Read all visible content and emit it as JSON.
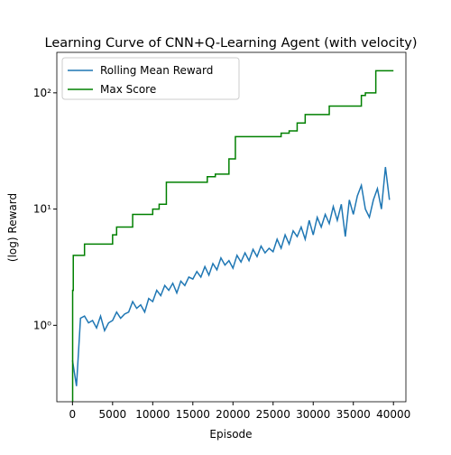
{
  "chart_data": {
    "type": "line",
    "title": "Learning Curve of CNN+Q-Learning Agent (with velocity)",
    "xlabel": "Episode",
    "ylabel": "(log) Reward",
    "log_y": true,
    "grid": false,
    "legend": "upper left",
    "xlim": [
      -1950,
      41550
    ],
    "ylim": [
      0.22,
      223
    ],
    "xticks": [
      0,
      5000,
      10000,
      15000,
      20000,
      25000,
      30000,
      35000,
      40000
    ],
    "yticks": [
      {
        "value": 1,
        "label": "10⁰"
      },
      {
        "value": 10,
        "label": "10¹"
      },
      {
        "value": 100,
        "label": "10²"
      }
    ],
    "series": [
      {
        "name": "Rolling Mean Reward",
        "color": "#1f77b4",
        "drawstyle": "default",
        "x": [
          0,
          500,
          1000,
          1500,
          2000,
          2500,
          3000,
          3500,
          4000,
          4500,
          5000,
          5500,
          6000,
          6500,
          7000,
          7500,
          8000,
          8500,
          9000,
          9500,
          10000,
          10500,
          11000,
          11500,
          12000,
          12500,
          13000,
          13500,
          14000,
          14500,
          15000,
          15500,
          16000,
          16500,
          17000,
          17500,
          18000,
          18500,
          19000,
          19500,
          20000,
          20500,
          21000,
          21500,
          22000,
          22500,
          23000,
          23500,
          24000,
          24500,
          25000,
          25500,
          26000,
          26500,
          27000,
          27500,
          28000,
          28500,
          29000,
          29500,
          30000,
          30500,
          31000,
          31500,
          32000,
          32500,
          33000,
          33500,
          34000,
          34500,
          35000,
          35500,
          36000,
          36500,
          37000,
          37500,
          38000,
          38500,
          39000,
          39500
        ],
        "values": [
          0.5,
          0.3,
          1.15,
          1.2,
          1.05,
          1.1,
          0.95,
          1.2,
          0.9,
          1.05,
          1.1,
          1.3,
          1.15,
          1.25,
          1.3,
          1.6,
          1.4,
          1.5,
          1.3,
          1.7,
          1.6,
          2.0,
          1.8,
          2.2,
          2.0,
          2.3,
          1.9,
          2.4,
          2.2,
          2.6,
          2.5,
          2.9,
          2.6,
          3.2,
          2.7,
          3.4,
          3.0,
          3.8,
          3.3,
          3.6,
          3.1,
          4.0,
          3.5,
          4.2,
          3.6,
          4.5,
          3.9,
          4.8,
          4.2,
          4.6,
          4.3,
          5.5,
          4.6,
          6.0,
          5.0,
          6.5,
          5.8,
          7.0,
          5.5,
          8.0,
          6.0,
          8.5,
          7.0,
          9.0,
          7.5,
          10.5,
          8.0,
          11.0,
          5.8,
          12.0,
          9.0,
          13.0,
          16.0,
          10.0,
          8.5,
          12.0,
          15.0,
          10.0,
          23.0,
          12.0
        ]
      },
      {
        "name": "Max Score",
        "color": "#008000",
        "drawstyle": "steps-post",
        "x": [
          0,
          20,
          100,
          1500,
          5000,
          5500,
          7500,
          10000,
          10800,
          11700,
          16800,
          17800,
          19500,
          20300,
          26000,
          27000,
          28000,
          29000,
          32000,
          36000,
          36500,
          37800,
          40000
        ],
        "values": [
          0.22,
          2,
          4,
          5,
          6,
          7,
          9,
          10,
          11,
          17,
          19,
          20,
          27,
          42,
          45,
          47,
          55,
          65,
          77,
          95,
          100,
          155,
          155
        ]
      }
    ]
  }
}
